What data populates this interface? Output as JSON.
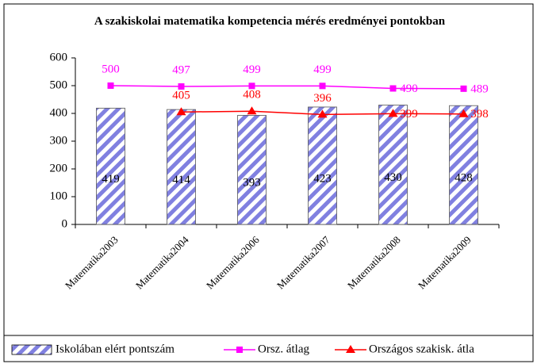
{
  "chart_data": {
    "type": "bar",
    "title": "A szakiskolai matematika kompetencia mérés eredményei pontokban",
    "categories": [
      "Matematika2003",
      "Matematika2004",
      "Matematika2006",
      "Matematika2007",
      "Matematika2008",
      "Matematika2009"
    ],
    "series": [
      {
        "name": "Iskolában elért pontszám",
        "type": "bar",
        "color": "#8080e0",
        "values": [
          419,
          414,
          393,
          423,
          430,
          428
        ]
      },
      {
        "name": "Orsz. átlag",
        "type": "line",
        "marker": "square",
        "color": "#ff00ff",
        "values": [
          500,
          497,
          499,
          499,
          490,
          489
        ]
      },
      {
        "name": "Országos szakisk. átla",
        "type": "line",
        "marker": "triangle",
        "color": "#ff0000",
        "values": [
          null,
          405,
          408,
          396,
          399,
          398
        ]
      }
    ],
    "ylim": [
      0,
      600
    ],
    "yticks": [
      0,
      100,
      200,
      300,
      400,
      500,
      600
    ],
    "grid": false,
    "legend": "bottom"
  }
}
